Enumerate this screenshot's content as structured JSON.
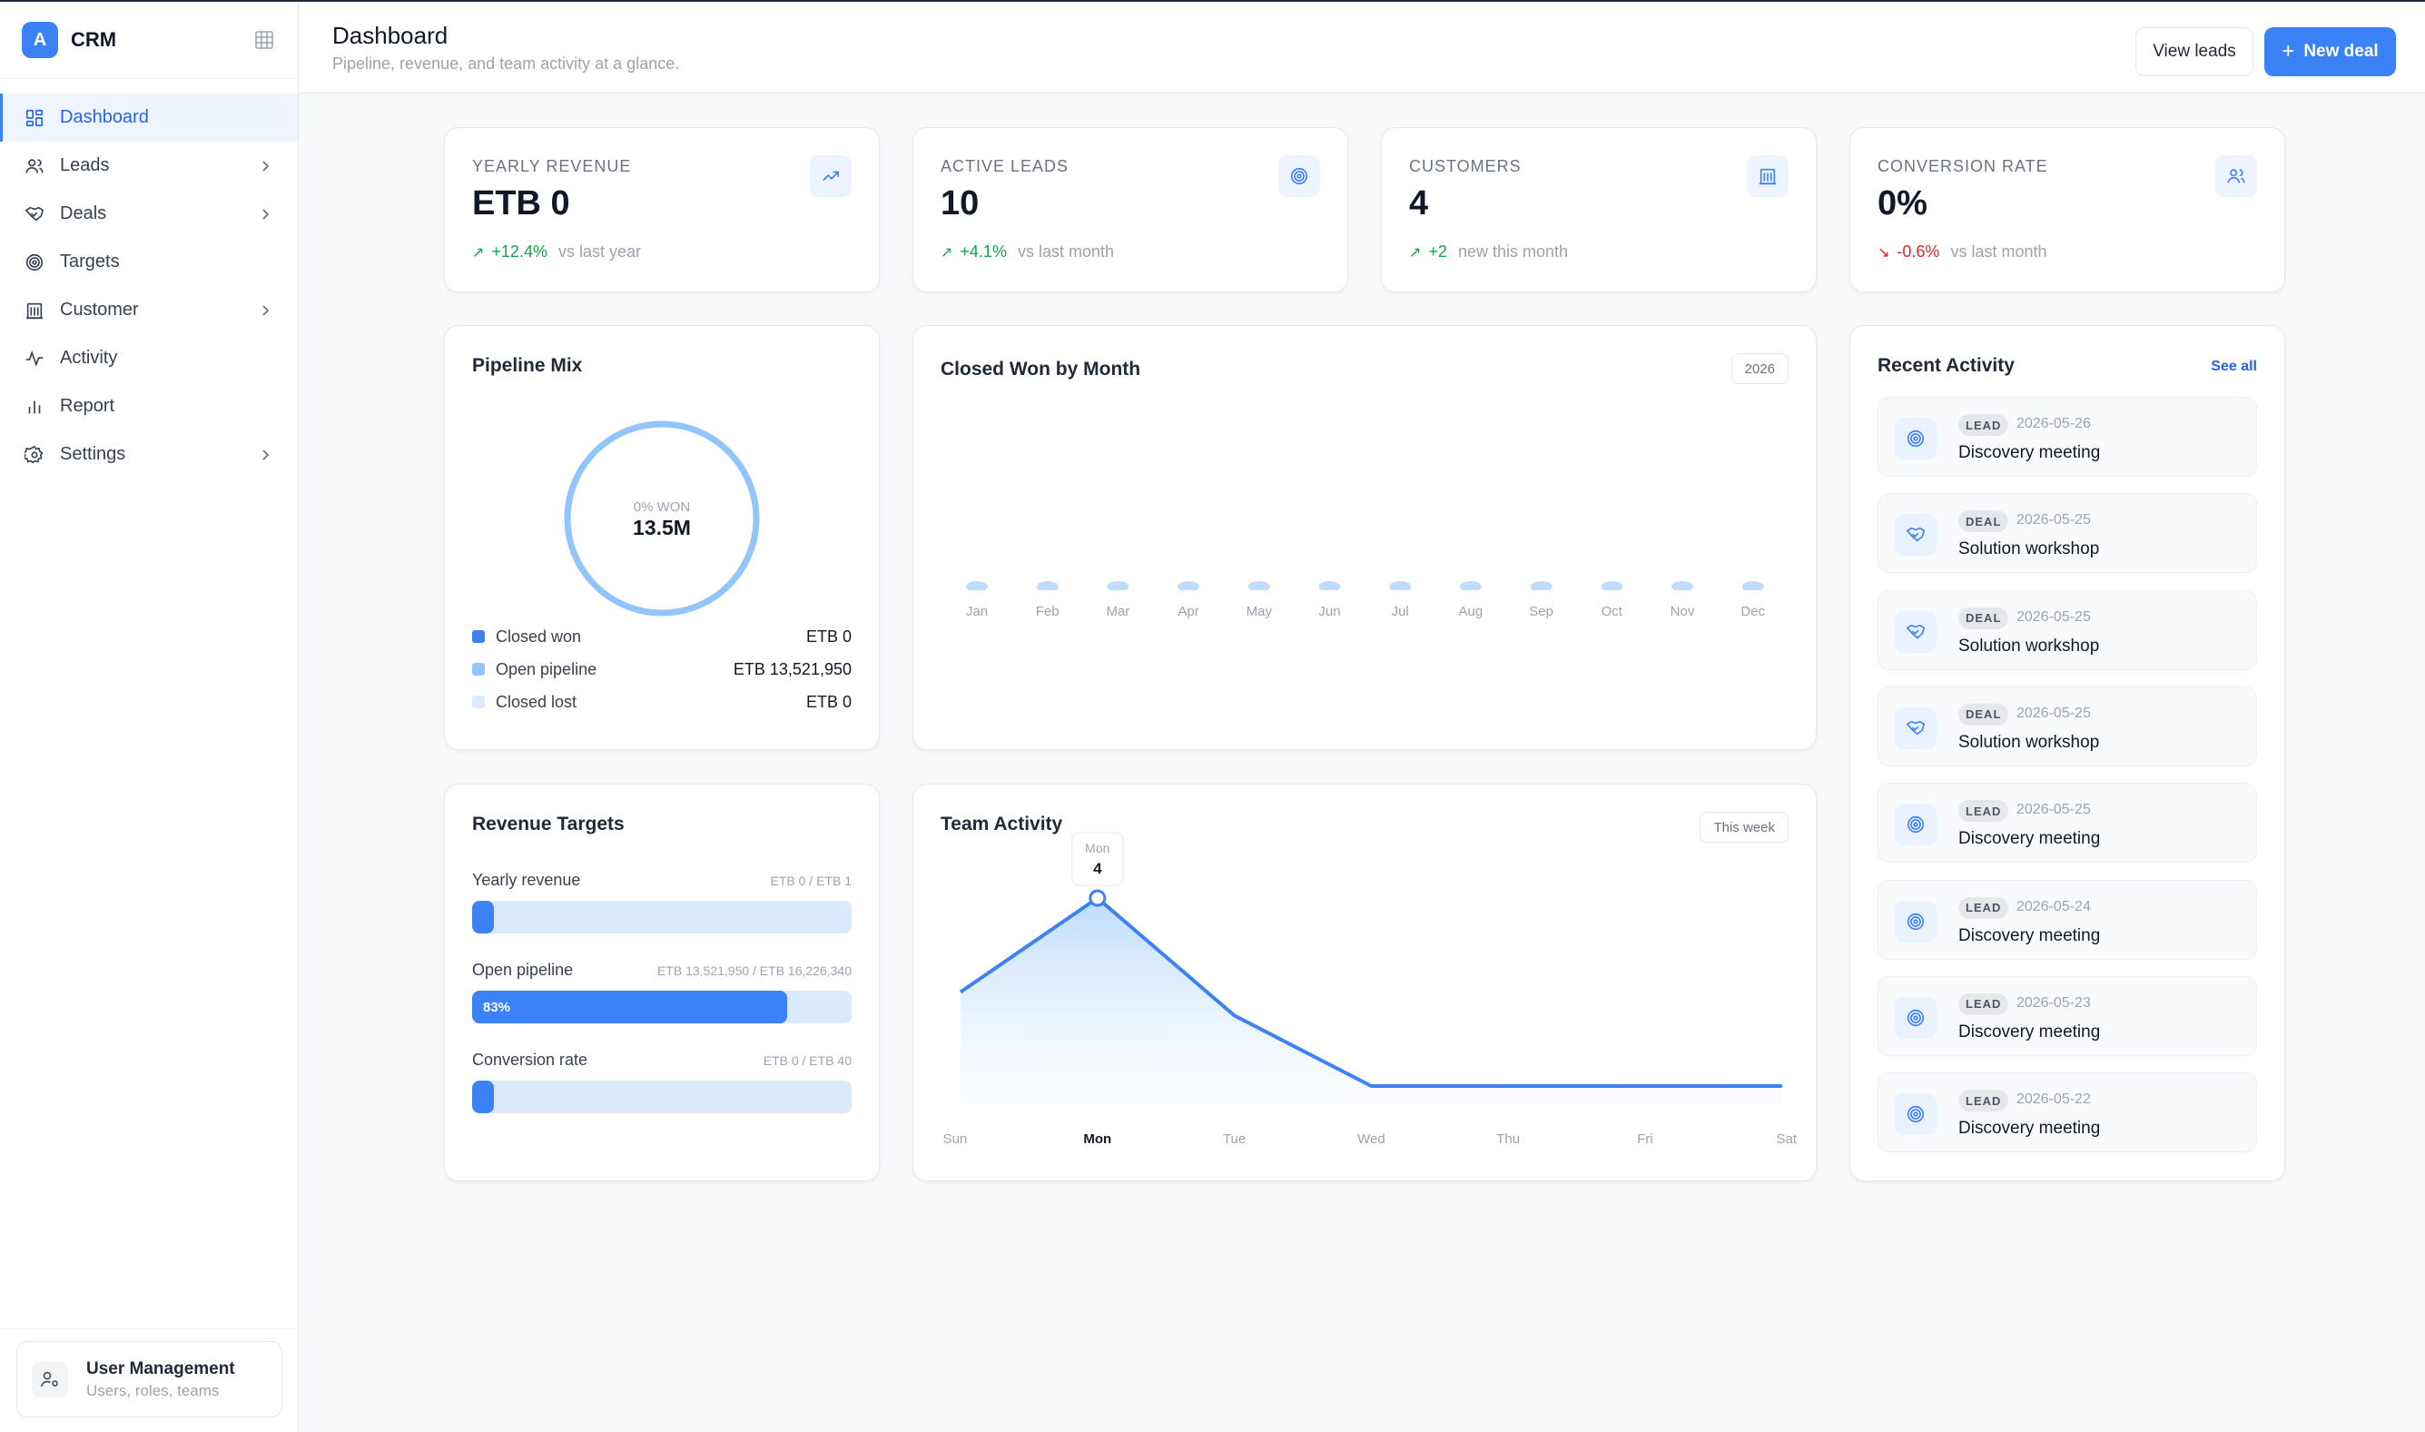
{
  "brand": {
    "logo_letter": "A",
    "name": "CRM"
  },
  "nav": [
    {
      "label": "Dashboard",
      "icon": "dashboard-icon",
      "active": true,
      "chevron": false
    },
    {
      "label": "Leads",
      "icon": "users-icon",
      "active": false,
      "chevron": true
    },
    {
      "label": "Deals",
      "icon": "handshake-icon",
      "active": false,
      "chevron": true
    },
    {
      "label": "Targets",
      "icon": "target-icon",
      "active": false,
      "chevron": false
    },
    {
      "label": "Customer",
      "icon": "building-icon",
      "active": false,
      "chevron": true
    },
    {
      "label": "Activity",
      "icon": "activity-icon",
      "active": false,
      "chevron": false
    },
    {
      "label": "Report",
      "icon": "bar-chart-icon",
      "active": false,
      "chevron": false
    },
    {
      "label": "Settings",
      "icon": "gear-icon",
      "active": false,
      "chevron": true
    }
  ],
  "user_mgmt": {
    "title": "User Management",
    "subtitle": "Users, roles, teams"
  },
  "header": {
    "title": "Dashboard",
    "subtitle": "Pipeline, revenue, and team activity at a glance.",
    "view_leads": "View leads",
    "new_deal": "New deal"
  },
  "kpis": [
    {
      "label": "YEARLY REVENUE",
      "value": "ETB 0",
      "delta": "+12.4%",
      "compare": "vs last year",
      "direction": "up",
      "icon": "trending-up-icon"
    },
    {
      "label": "ACTIVE LEADS",
      "value": "10",
      "delta": "+4.1%",
      "compare": "vs last month",
      "direction": "up",
      "icon": "target-icon"
    },
    {
      "label": "CUSTOMERS",
      "value": "4",
      "delta": "+2",
      "compare": "new this month",
      "direction": "up",
      "icon": "building-icon"
    },
    {
      "label": "CONVERSION RATE",
      "value": "0%",
      "delta": "-0.6%",
      "compare": "vs last month",
      "direction": "down",
      "icon": "users-icon"
    }
  ],
  "pipeline": {
    "title": "Pipeline Mix",
    "center_label": "0% WON",
    "center_value": "13.5M",
    "legend": [
      {
        "label": "Closed won",
        "value": "ETB 0",
        "color": "#3b82f6"
      },
      {
        "label": "Open pipeline",
        "value": "ETB 13,521,950",
        "color": "#93c5fd"
      },
      {
        "label": "Closed lost",
        "value": "ETB 0",
        "color": "#dbeafe"
      }
    ]
  },
  "closed_won": {
    "title": "Closed Won by Month",
    "year": "2026"
  },
  "targets": {
    "title": "Revenue Targets",
    "items": [
      {
        "label": "Yearly revenue",
        "range": "ETB 0 / ETB 1",
        "progress": 0,
        "percent_label": ""
      },
      {
        "label": "Open pipeline",
        "range": "ETB 13,521,950 / ETB 16,226,340",
        "progress": 0.83,
        "percent_label": "83%"
      },
      {
        "label": "Conversion rate",
        "range": "ETB 0 / ETB 40",
        "progress": 0,
        "percent_label": ""
      }
    ]
  },
  "team": {
    "title": "Team Activity",
    "period": "This week",
    "tooltip_day": "Mon",
    "tooltip_value": "4"
  },
  "activity": {
    "title": "Recent Activity",
    "see_all": "See all",
    "items": [
      {
        "type": "LEAD",
        "date": "2026-05-26",
        "title": "Discovery meeting",
        "icon": "target-icon"
      },
      {
        "type": "DEAL",
        "date": "2026-05-25",
        "title": "Solution workshop",
        "icon": "handshake-icon"
      },
      {
        "type": "DEAL",
        "date": "2026-05-25",
        "title": "Solution workshop",
        "icon": "handshake-icon"
      },
      {
        "type": "DEAL",
        "date": "2026-05-25",
        "title": "Solution workshop",
        "icon": "handshake-icon"
      },
      {
        "type": "LEAD",
        "date": "2026-05-25",
        "title": "Discovery meeting",
        "icon": "target-icon"
      },
      {
        "type": "LEAD",
        "date": "2026-05-24",
        "title": "Discovery meeting",
        "icon": "target-icon"
      },
      {
        "type": "LEAD",
        "date": "2026-05-23",
        "title": "Discovery meeting",
        "icon": "target-icon"
      },
      {
        "type": "LEAD",
        "date": "2026-05-22",
        "title": "Discovery meeting",
        "icon": "target-icon"
      }
    ]
  },
  "chart_data": [
    {
      "type": "pie",
      "title": "Pipeline Mix",
      "categories": [
        "Closed won",
        "Open pipeline",
        "Closed lost"
      ],
      "values": [
        0,
        13521950,
        0
      ]
    },
    {
      "type": "bar",
      "title": "Closed Won by Month",
      "categories": [
        "Jan",
        "Feb",
        "Mar",
        "Apr",
        "May",
        "Jun",
        "Jul",
        "Aug",
        "Sep",
        "Oct",
        "Nov",
        "Dec"
      ],
      "values": [
        0,
        0,
        0,
        0,
        0,
        0,
        0,
        0,
        0,
        0,
        0,
        0
      ]
    },
    {
      "type": "area",
      "title": "Team Activity",
      "categories": [
        "Sun",
        "Mon",
        "Tue",
        "Wed",
        "Thu",
        "Fri",
        "Sat"
      ],
      "values": [
        2,
        4,
        1.5,
        0,
        0,
        0,
        0
      ],
      "highlight": "Mon"
    }
  ]
}
